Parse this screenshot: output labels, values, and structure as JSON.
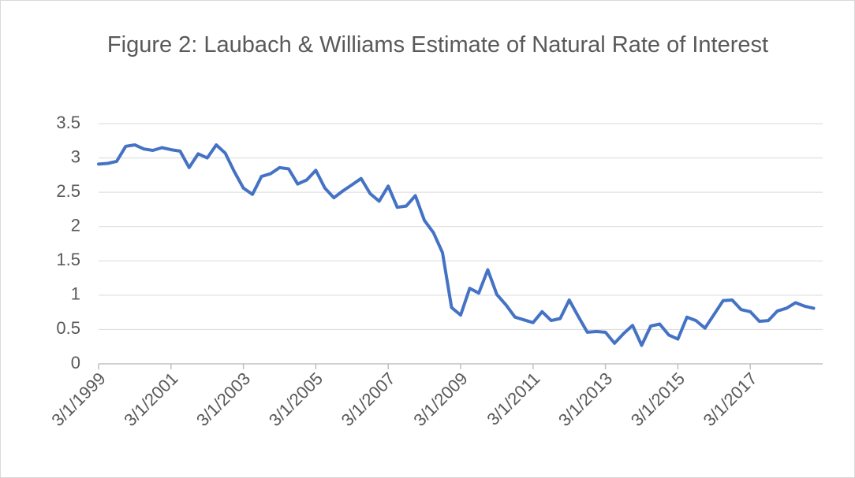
{
  "chart_data": {
    "type": "line",
    "title": "Figure 2: Laubach & Williams Estimate of Natural Rate of Interest",
    "categories": [
      "3/1/1999",
      null,
      null,
      null,
      null,
      null,
      null,
      null,
      "3/1/2001",
      null,
      null,
      null,
      null,
      null,
      null,
      null,
      "3/1/2003",
      null,
      null,
      null,
      null,
      null,
      null,
      null,
      "3/1/2005",
      null,
      null,
      null,
      null,
      null,
      null,
      null,
      "3/1/2007",
      null,
      null,
      null,
      null,
      null,
      null,
      null,
      "3/1/2009",
      null,
      null,
      null,
      null,
      null,
      null,
      null,
      "3/1/2011",
      null,
      null,
      null,
      null,
      null,
      null,
      null,
      "3/1/2013",
      null,
      null,
      null,
      null,
      null,
      null,
      null,
      "3/1/2015",
      null,
      null,
      null,
      null,
      null,
      null,
      null,
      "3/1/2017",
      null,
      null,
      null,
      null,
      null,
      null,
      null
    ],
    "values": [
      2.91,
      2.92,
      2.95,
      3.17,
      3.19,
      3.13,
      3.11,
      3.15,
      3.12,
      3.1,
      2.86,
      3.06,
      3.0,
      3.19,
      3.07,
      2.8,
      2.56,
      2.47,
      2.73,
      2.77,
      2.86,
      2.84,
      2.62,
      2.68,
      2.82,
      2.56,
      2.42,
      2.52,
      2.61,
      2.7,
      2.48,
      2.37,
      2.59,
      2.28,
      2.3,
      2.45,
      2.09,
      1.91,
      1.62,
      0.82,
      0.71,
      1.1,
      1.03,
      1.37,
      1.01,
      0.86,
      0.68,
      0.64,
      0.6,
      0.76,
      0.63,
      0.66,
      0.93,
      0.69,
      0.46,
      0.47,
      0.46,
      0.3,
      0.44,
      0.56,
      0.27,
      0.55,
      0.58,
      0.42,
      0.36,
      0.68,
      0.63,
      0.52,
      0.72,
      0.92,
      0.93,
      0.79,
      0.76,
      0.62,
      0.63,
      0.77,
      0.81,
      0.89,
      0.84,
      0.81
    ],
    "color": "#4472c4",
    "ylim": [
      0,
      3.5
    ],
    "yticks": [
      0,
      0.5,
      1,
      1.5,
      2,
      2.5,
      3,
      3.5
    ],
    "grid": true
  }
}
